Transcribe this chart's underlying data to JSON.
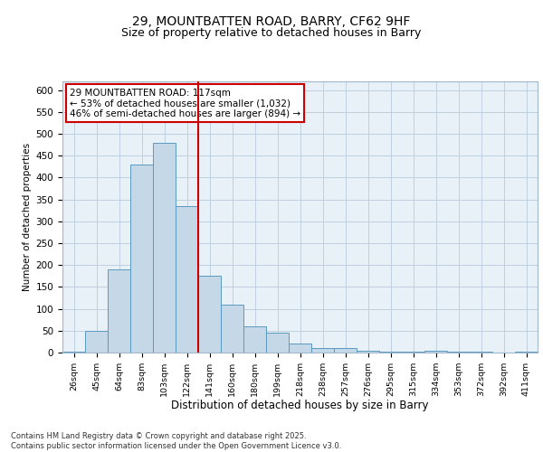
{
  "title_line1": "29, MOUNTBATTEN ROAD, BARRY, CF62 9HF",
  "title_line2": "Size of property relative to detached houses in Barry",
  "xlabel": "Distribution of detached houses by size in Barry",
  "ylabel": "Number of detached properties",
  "categories": [
    "26sqm",
    "45sqm",
    "64sqm",
    "83sqm",
    "103sqm",
    "122sqm",
    "141sqm",
    "160sqm",
    "180sqm",
    "199sqm",
    "218sqm",
    "238sqm",
    "257sqm",
    "276sqm",
    "295sqm",
    "315sqm",
    "334sqm",
    "353sqm",
    "372sqm",
    "392sqm",
    "411sqm"
  ],
  "values": [
    3,
    50,
    190,
    430,
    480,
    335,
    175,
    110,
    60,
    45,
    20,
    10,
    10,
    5,
    3,
    2,
    5,
    2,
    3,
    1,
    3
  ],
  "bar_color": "#c5d8e8",
  "bar_edge_color": "#5a9abf",
  "grid_color": "#c0d0e0",
  "bg_color": "#e8f0f8",
  "vline_color": "#cc0000",
  "vline_pos": 5.5,
  "annotation_text_line1": "29 MOUNTBATTEN ROAD: 117sqm",
  "annotation_text_line2": "← 53% of detached houses are smaller (1,032)",
  "annotation_text_line3": "46% of semi-detached houses are larger (894) →",
  "annotation_fontsize": 7.5,
  "footer_text": "Contains HM Land Registry data © Crown copyright and database right 2025.\nContains public sector information licensed under the Open Government Licence v3.0.",
  "ylim": [
    0,
    620
  ],
  "yticks": [
    0,
    50,
    100,
    150,
    200,
    250,
    300,
    350,
    400,
    450,
    500,
    550,
    600
  ],
  "title_fontsize": 10,
  "subtitle_fontsize": 9
}
